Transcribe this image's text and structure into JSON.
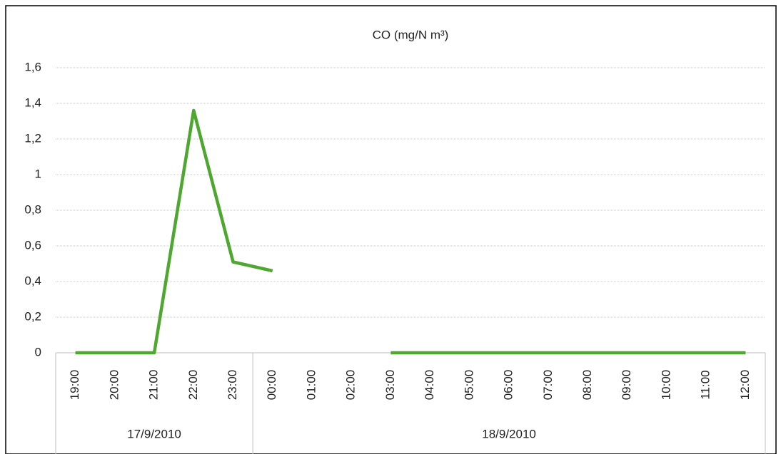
{
  "chart_data": {
    "type": "line",
    "title": "CO (mg/N m³)",
    "categories": [
      "19:00",
      "20:00",
      "21:00",
      "22:00",
      "23:00",
      "00:00",
      "01:00",
      "02:00",
      "03:00",
      "04:00",
      "05:00",
      "06:00",
      "07:00",
      "08:00",
      "09:00",
      "10:00",
      "11:00",
      "12:00"
    ],
    "groups": [
      {
        "label": "17/9/2010",
        "count": 5
      },
      {
        "label": "18/9/2010",
        "count": 13
      }
    ],
    "series": [
      {
        "name": "CO",
        "color": "#4ea72e",
        "values": [
          0,
          0,
          0,
          1.36,
          0.51,
          0.46,
          null,
          null,
          0,
          0,
          0,
          0,
          0,
          0,
          0,
          0,
          0,
          0
        ]
      }
    ],
    "ylim": [
      0,
      1.6
    ],
    "yticks": [
      0,
      {
        "value": 0.2,
        "label": "0,2"
      },
      {
        "value": 0.4,
        "label": "0,4"
      },
      {
        "value": 0.6,
        "label": "0,6"
      },
      {
        "value": 0.8,
        "label": "0,8"
      },
      1,
      {
        "value": 1.2,
        "label": "1,2"
      },
      {
        "value": 1.4,
        "label": "1,4"
      },
      {
        "value": 1.6,
        "label": "1,6"
      }
    ],
    "grid": true
  }
}
